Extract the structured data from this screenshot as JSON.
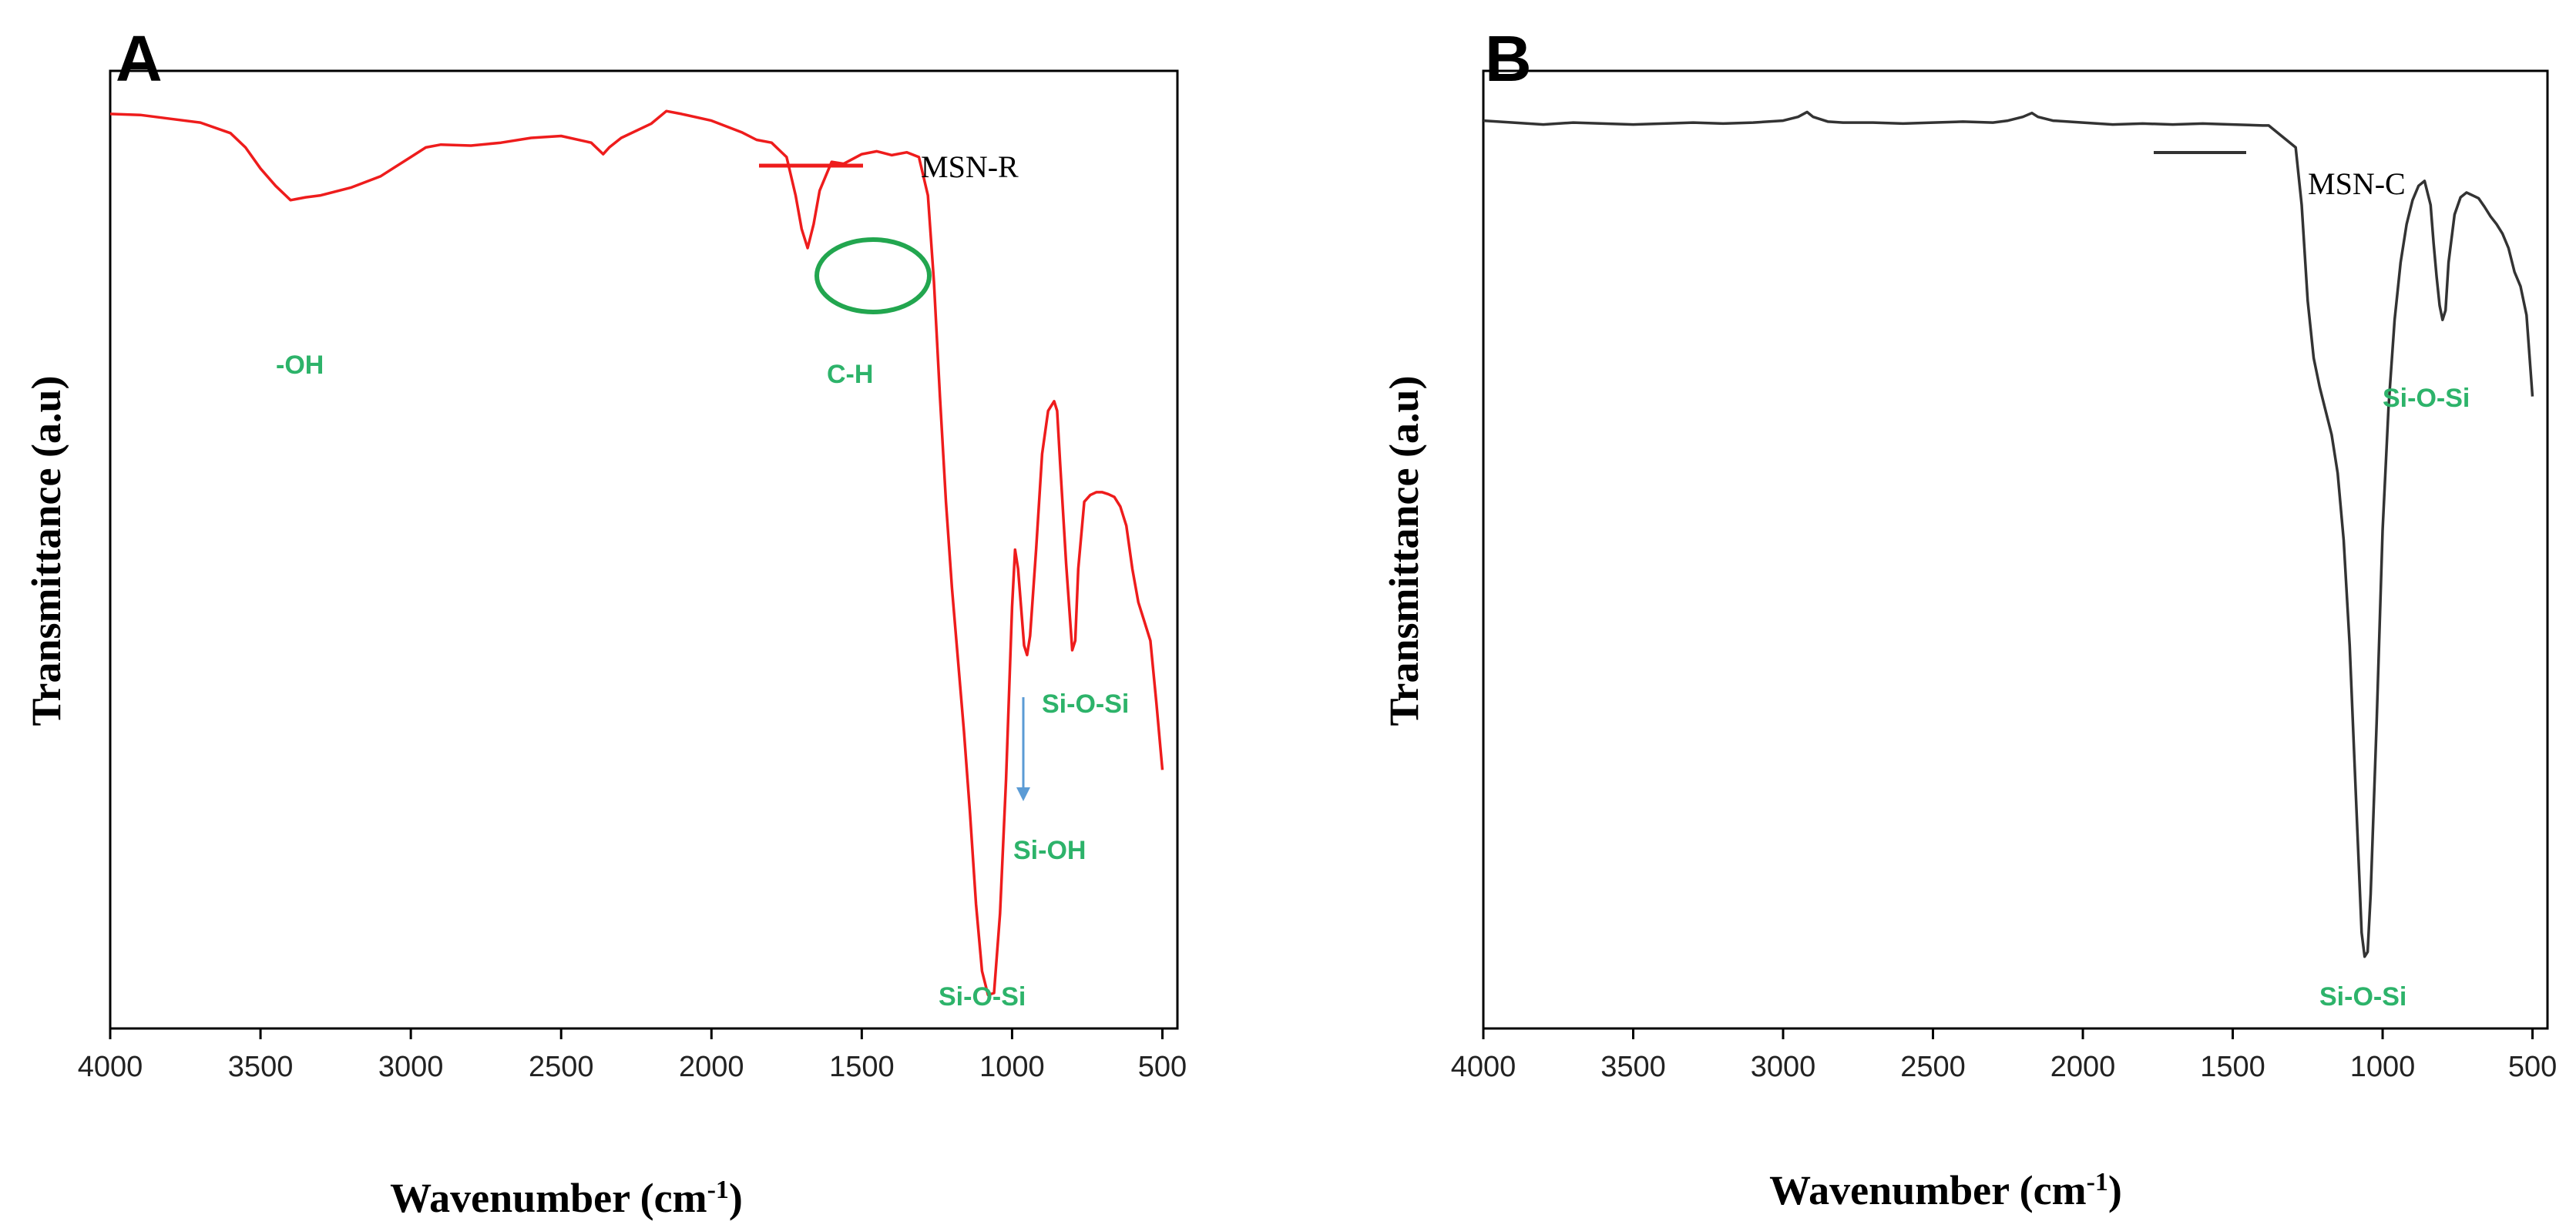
{
  "chart_data": [
    {
      "type": "line",
      "panel": "A",
      "xlabel": "Wavenumber (cm",
      "xlabel_sup": "-1",
      "xlabel_close": ")",
      "ylabel": "Transmittance (a.u)",
      "xlim": [
        4000,
        450
      ],
      "ylim": [
        0,
        100
      ],
      "x_ticks": [
        4000,
        3500,
        3000,
        2500,
        2000,
        1500,
        1000,
        500
      ],
      "color": "#ee1c1c",
      "legend": "MSN-R",
      "series": [
        {
          "name": "MSN-R",
          "x": [
            4000,
            3900,
            3800,
            3700,
            3600,
            3550,
            3500,
            3450,
            3400,
            3350,
            3300,
            3200,
            3100,
            3000,
            2950,
            2900,
            2800,
            2700,
            2600,
            2500,
            2400,
            2360,
            2340,
            2300,
            2200,
            2150,
            2100,
            2000,
            1950,
            1900,
            1850,
            1800,
            1750,
            1720,
            1700,
            1680,
            1660,
            1640,
            1620,
            1600,
            1560,
            1500,
            1450,
            1400,
            1350,
            1310,
            1280,
            1260,
            1240,
            1220,
            1200,
            1180,
            1160,
            1140,
            1120,
            1100,
            1080,
            1060,
            1040,
            1020,
            1000,
            990,
            980,
            960,
            950,
            940,
            920,
            900,
            880,
            860,
            850,
            840,
            820,
            800,
            790,
            780,
            760,
            740,
            720,
            700,
            680,
            660,
            640,
            620,
            600,
            580,
            560,
            540,
            520,
            500
          ],
          "y": [
            95.5,
            95.4,
            95.0,
            94.6,
            93.5,
            92.0,
            89.8,
            88.0,
            86.5,
            86.8,
            87.0,
            87.8,
            89.0,
            91.0,
            92.0,
            92.3,
            92.2,
            92.5,
            93.0,
            93.2,
            92.5,
            91.3,
            92.0,
            93.0,
            94.5,
            95.8,
            95.5,
            94.8,
            94.2,
            93.6,
            92.8,
            92.5,
            91.0,
            87.0,
            83.5,
            81.5,
            84.0,
            87.5,
            89.0,
            90.5,
            90.3,
            91.3,
            91.6,
            91.2,
            91.5,
            91.0,
            87.0,
            78.0,
            66.0,
            55.0,
            46.0,
            38.5,
            31.0,
            22.5,
            13.0,
            6.0,
            3.5,
            3.7,
            12.0,
            26.0,
            44.0,
            50.0,
            48.0,
            40.0,
            39.0,
            41.0,
            50.0,
            60.0,
            64.5,
            65.5,
            64.5,
            59.0,
            48.5,
            39.5,
            40.5,
            48.0,
            55.0,
            55.7,
            56.0,
            56.0,
            55.8,
            55.5,
            54.5,
            52.5,
            48.0,
            44.5,
            42.5,
            40.5,
            34.0,
            27.0
          ]
        }
      ],
      "annotations": [
        "-OH",
        "C-H",
        "Si-O-Si",
        "Si-OH",
        "Si-O-Si"
      ]
    },
    {
      "type": "line",
      "panel": "B",
      "xlabel": "Wavenumber (cm",
      "xlabel_sup": "-1",
      "xlabel_close": ")",
      "ylabel": "Transmittance (a.u)",
      "xlim": [
        4000,
        450
      ],
      "ylim": [
        0,
        100
      ],
      "x_ticks": [
        4000,
        3500,
        3000,
        2500,
        2000,
        1500,
        1000,
        500
      ],
      "color": "#333333",
      "legend": "MSN-C",
      "series": [
        {
          "name": "MSN-C",
          "x": [
            4000,
            3900,
            3800,
            3700,
            3600,
            3500,
            3400,
            3300,
            3200,
            3100,
            3000,
            2950,
            2920,
            2900,
            2850,
            2800,
            2700,
            2600,
            2500,
            2400,
            2300,
            2250,
            2200,
            2170,
            2150,
            2100,
            2000,
            1900,
            1800,
            1700,
            1600,
            1500,
            1400,
            1380,
            1290,
            1270,
            1250,
            1230,
            1210,
            1190,
            1170,
            1150,
            1130,
            1110,
            1090,
            1070,
            1060,
            1050,
            1040,
            1020,
            1000,
            980,
            960,
            940,
            920,
            900,
            880,
            860,
            840,
            830,
            820,
            810,
            800,
            790,
            780,
            760,
            740,
            720,
            700,
            680,
            660,
            640,
            620,
            600,
            580,
            560,
            540,
            520,
            500
          ],
          "y": [
            94.8,
            94.6,
            94.4,
            94.6,
            94.5,
            94.4,
            94.5,
            94.6,
            94.5,
            94.6,
            94.8,
            95.2,
            95.7,
            95.2,
            94.7,
            94.6,
            94.6,
            94.5,
            94.6,
            94.7,
            94.6,
            94.8,
            95.2,
            95.6,
            95.2,
            94.8,
            94.6,
            94.4,
            94.5,
            94.4,
            94.5,
            94.4,
            94.3,
            94.3,
            92.0,
            86.0,
            76.0,
            70.0,
            67.0,
            64.5,
            62.0,
            58.0,
            51.0,
            40.0,
            25.0,
            10.0,
            7.5,
            8.0,
            14.0,
            32.0,
            52.0,
            65.0,
            74.0,
            80.0,
            84.0,
            86.5,
            88.0,
            88.5,
            86.0,
            82.0,
            78.5,
            75.5,
            74.0,
            75.0,
            80.0,
            85.0,
            86.8,
            87.3,
            87.0,
            86.7,
            85.8,
            84.8,
            84.0,
            83.0,
            81.5,
            79.0,
            77.5,
            74.5,
            66.0
          ]
        }
      ],
      "annotations": [
        "Si-O-Si",
        "Si-O-Si"
      ]
    }
  ]
}
